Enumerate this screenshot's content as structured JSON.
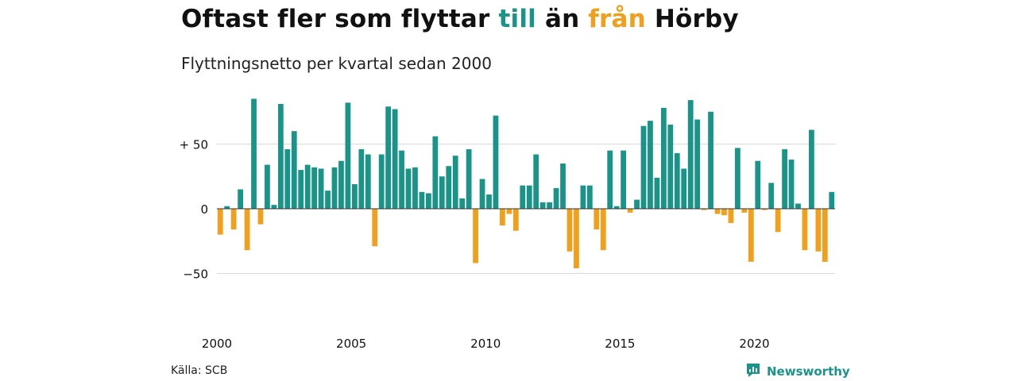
{
  "header": {
    "title_parts": [
      "Oftast fler som flyttar ",
      "till",
      " än ",
      "från",
      " Hörby"
    ],
    "subtitle": "Flyttningsnetto per kvartal sedan 2000"
  },
  "footer": {
    "source": "Källa: SCB",
    "brand": "Newsworthy"
  },
  "colors": {
    "positive": "#1a9488",
    "negative": "#f0a01c",
    "grid": "#d9d9d9",
    "zero_line": "#333333",
    "text": "#111111"
  },
  "icons": {
    "brand_logo": "newsworthy-logo-icon"
  },
  "chart_data": {
    "type": "bar",
    "title": "Oftast fler som flyttar till än från Hörby",
    "subtitle": "Flyttningsnetto per kvartal sedan 2000",
    "x_start": "2000 Q1",
    "x_ticks": [
      {
        "label": "2000",
        "index": 0
      },
      {
        "label": "2005",
        "index": 20
      },
      {
        "label": "2010",
        "index": 40
      },
      {
        "label": "2015",
        "index": 60
      },
      {
        "label": "2020",
        "index": 80
      }
    ],
    "y_ticks": [
      {
        "value": 50,
        "label": "+ 50"
      },
      {
        "value": 0,
        "label": "0"
      },
      {
        "value": -50,
        "label": "−50"
      }
    ],
    "ylim": [
      -80,
      90
    ],
    "grid": true,
    "legend": "none",
    "values": [
      -20,
      2,
      -16,
      15,
      -32,
      85,
      -12,
      34,
      3,
      81,
      46,
      60,
      30,
      34,
      32,
      31,
      14,
      32,
      37,
      82,
      19,
      46,
      42,
      -29,
      42,
      79,
      77,
      45,
      31,
      32,
      13,
      12,
      56,
      25,
      33,
      41,
      8,
      46,
      -42,
      23,
      11,
      72,
      -13,
      -4,
      -17,
      18,
      18,
      42,
      5,
      5,
      16,
      35,
      -33,
      -46,
      18,
      18,
      -16,
      -32,
      45,
      2,
      45,
      -3,
      7,
      64,
      68,
      24,
      78,
      65,
      43,
      31,
      84,
      69,
      -1,
      75,
      -4,
      -5,
      -11,
      47,
      -3,
      -41,
      37,
      -1,
      20,
      -18,
      46,
      38,
      4,
      -32,
      61,
      -33,
      -41,
      13
    ]
  }
}
